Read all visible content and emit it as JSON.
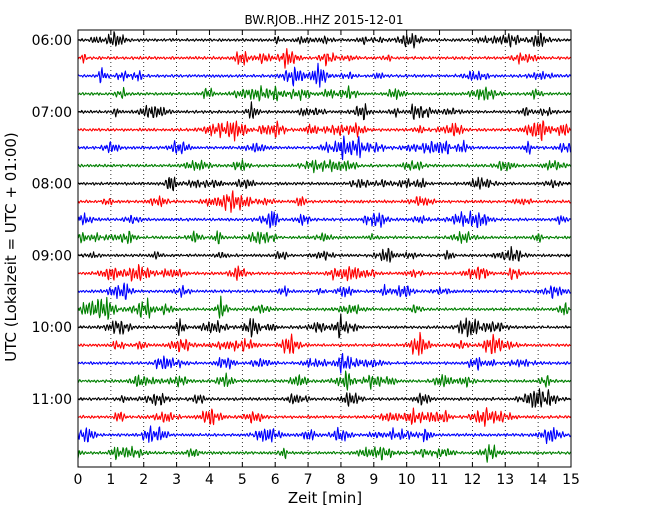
{
  "chart_data": {
    "type": "line",
    "title": "BW.RJOB..HHZ 2015-12-01",
    "xlabel": "Zeit  [min]",
    "ylabel": "UTC (Lokalzeit = UTC + 01:00)",
    "xlim": [
      0,
      15
    ],
    "x_ticks": [
      "0",
      "1",
      "2",
      "3",
      "4",
      "5",
      "6",
      "7",
      "8",
      "9",
      "10",
      "11",
      "12",
      "13",
      "14",
      "15"
    ],
    "y_ticks": [
      "06:00",
      "07:00",
      "08:00",
      "09:00",
      "10:00",
      "11:00"
    ],
    "y_tick_every_n_traces": 4,
    "trace_count": 24,
    "trace_start": "06:00",
    "trace_interval_min": 15,
    "color_cycle": [
      "#000000",
      "#ff0000",
      "#0000ff",
      "#008000"
    ],
    "vertical_grid": "dotted",
    "legend": "none"
  }
}
